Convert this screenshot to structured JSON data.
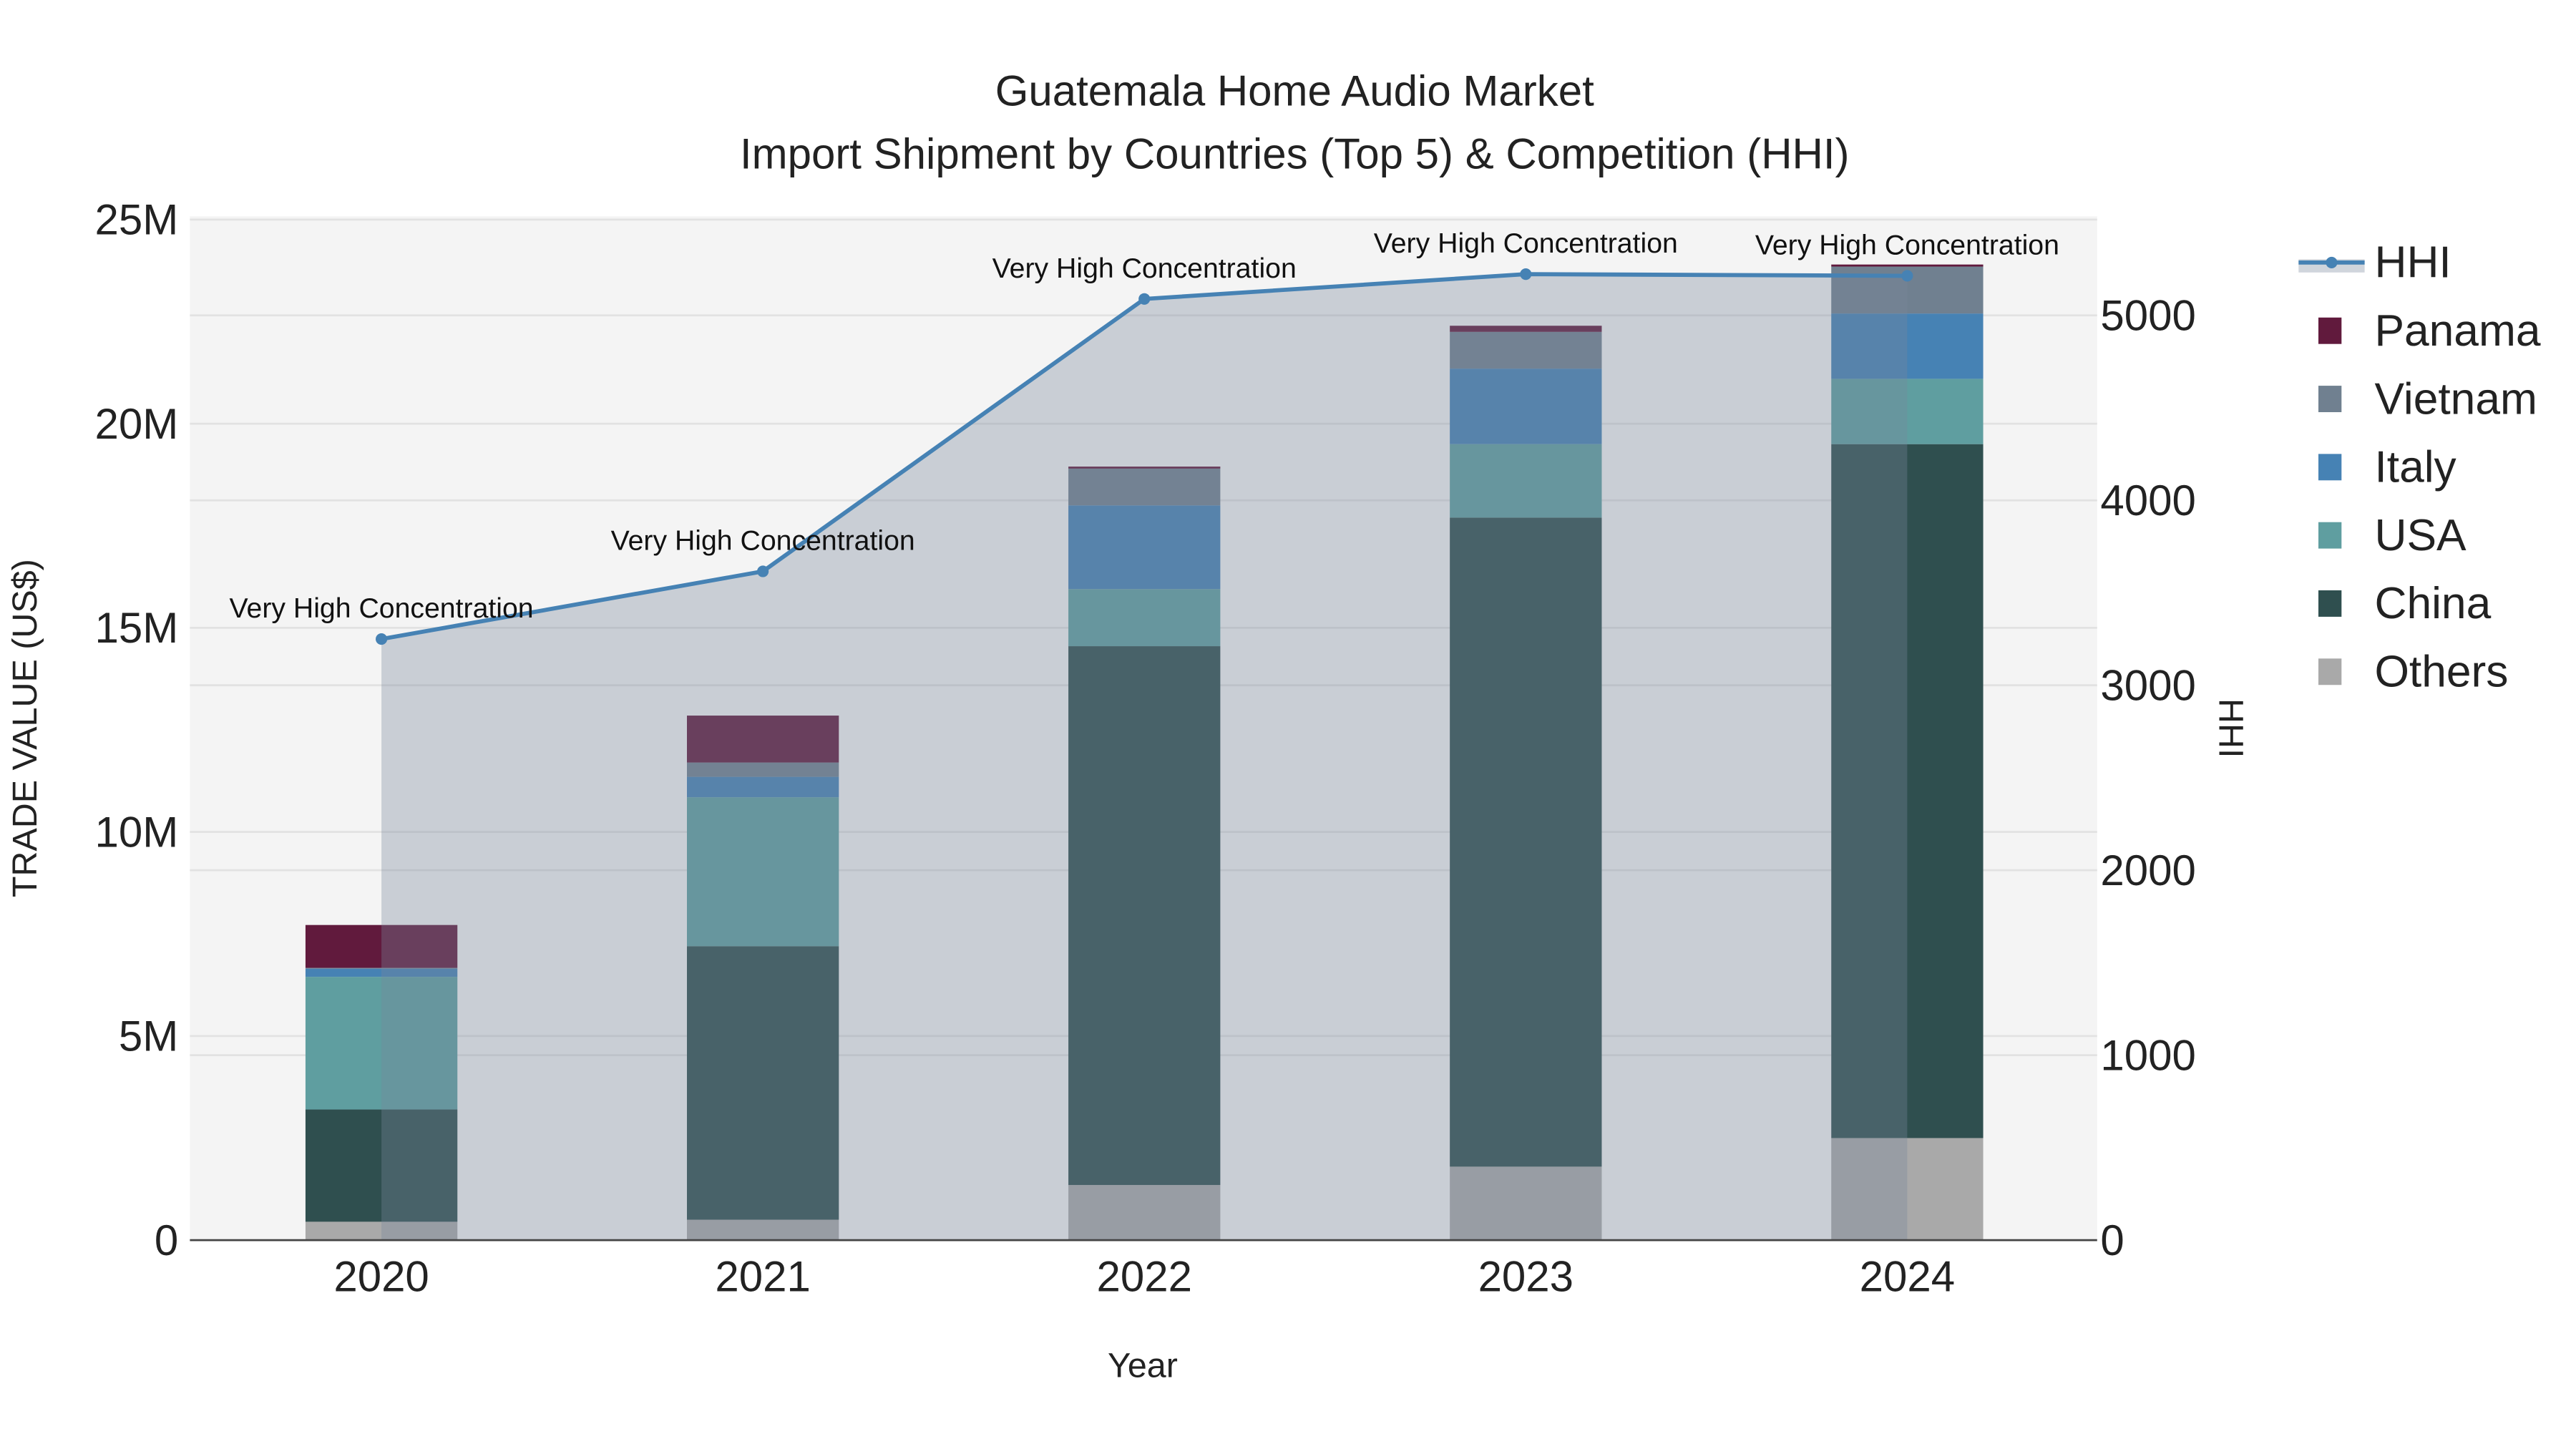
{
  "chart_data": {
    "type": "bar",
    "title": "Guatemala Home Audio Market",
    "subtitle": "Import Shipment by Countries (Top 5) & Competition (HHI)",
    "xlabel": "Year",
    "ylabel": "TRADE VALUE (US$)",
    "y2label": "HHI",
    "categories": [
      "2020",
      "2021",
      "2022",
      "2023",
      "2024"
    ],
    "ylim": [
      0,
      25000000
    ],
    "y2lim": [
      0,
      5520
    ],
    "yticks": [
      {
        "v": 0,
        "label": "0"
      },
      {
        "v": 5000000,
        "label": "5M"
      },
      {
        "v": 10000000,
        "label": "10M"
      },
      {
        "v": 15000000,
        "label": "15M"
      },
      {
        "v": 20000000,
        "label": "20M"
      },
      {
        "v": 25000000,
        "label": "25M"
      }
    ],
    "y2ticks": [
      {
        "v": 0,
        "label": "0"
      },
      {
        "v": 1000,
        "label": "1000"
      },
      {
        "v": 2000,
        "label": "2000"
      },
      {
        "v": 3000,
        "label": "3000"
      },
      {
        "v": 4000,
        "label": "4000"
      },
      {
        "v": 5000,
        "label": "5000"
      }
    ],
    "grid": true,
    "legend_position": "right",
    "series": [
      {
        "name": "Others",
        "color": "#a9a9a9",
        "values": [
          450000,
          500000,
          1350000,
          1800000,
          2500000
        ]
      },
      {
        "name": "China",
        "color": "#2f4f4f",
        "values": [
          2750000,
          6700000,
          13200000,
          15900000,
          17000000
        ]
      },
      {
        "name": "USA",
        "color": "#5f9ea0",
        "values": [
          3250000,
          3650000,
          1400000,
          1800000,
          1600000
        ]
      },
      {
        "name": "Italy",
        "color": "#4682b4",
        "values": [
          200000,
          500000,
          2050000,
          1850000,
          1600000
        ]
      },
      {
        "name": "Vietnam",
        "color": "#708090",
        "values": [
          20000,
          350000,
          900000,
          900000,
          1150000
        ]
      },
      {
        "name": "Panama",
        "color": "#611a3d",
        "values": [
          1050000,
          1150000,
          50000,
          150000,
          50000
        ]
      }
    ],
    "hhi": {
      "name": "HHI",
      "color": "#4682b4",
      "values": [
        3250,
        3616,
        5089,
        5223,
        5214
      ]
    },
    "annotations": [
      "Very High Concentration",
      "Very High Concentration",
      "Very High Concentration",
      "Very High Concentration",
      "Very High Concentration"
    ],
    "legend_order": [
      "HHI",
      "Panama",
      "Vietnam",
      "Italy",
      "USA",
      "China",
      "Others"
    ]
  }
}
